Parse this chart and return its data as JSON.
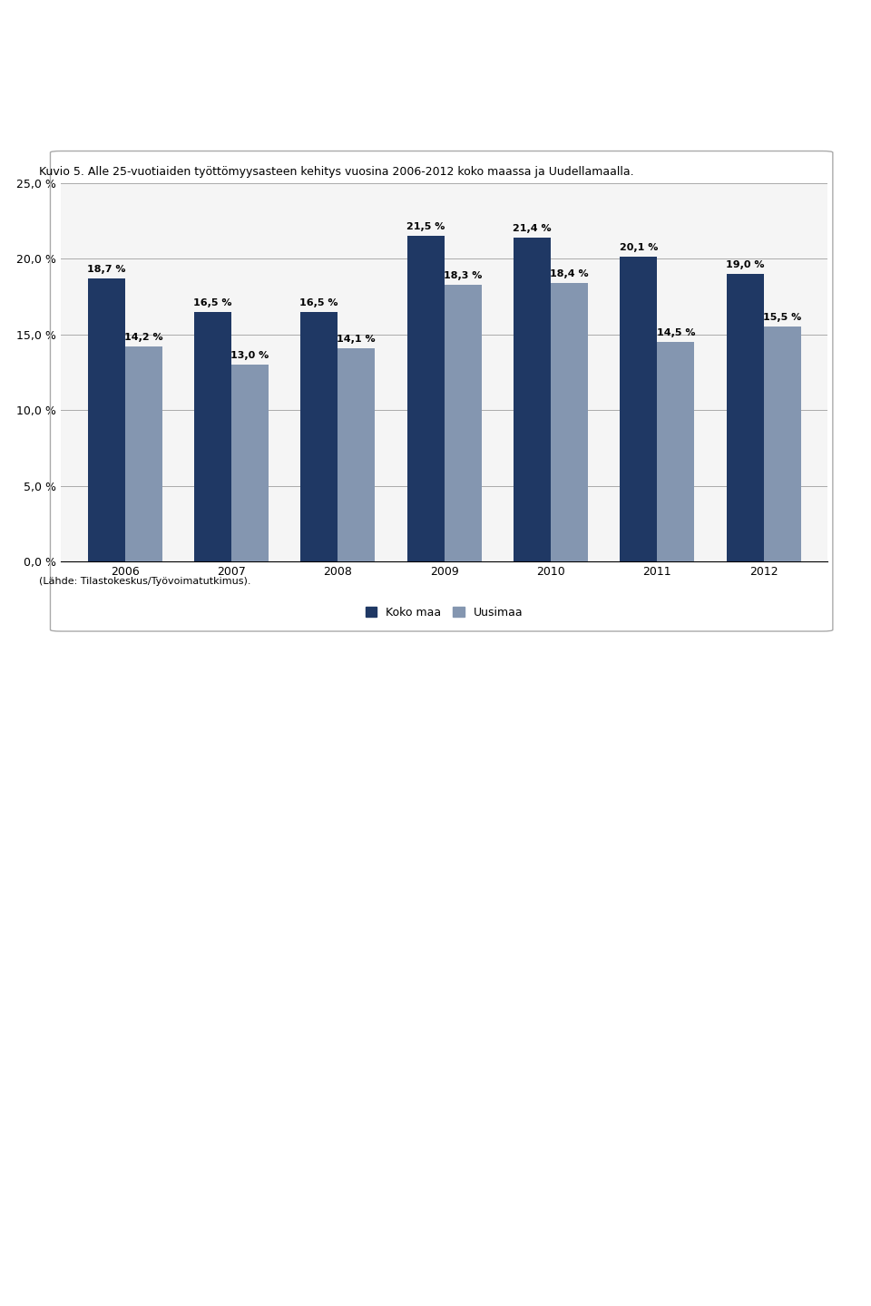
{
  "years": [
    "2006",
    "2007",
    "2008",
    "2009",
    "2010",
    "2011",
    "2012"
  ],
  "koko_maa": [
    18.7,
    16.5,
    16.5,
    21.5,
    21.4,
    20.1,
    19.0
  ],
  "uusimaa": [
    14.2,
    13.0,
    14.1,
    18.3,
    18.4,
    14.5,
    15.5
  ],
  "koko_maa_color": "#1F3864",
  "uusimaa_color": "#8496B0",
  "title": "Kuvio 5. Alle 25-vuotiaiden työttömyysasteen kehitys vuosina 2006-2012 koko maassa ja Uudellamaalla.",
  "legend_koko_maa": "Koko maa",
  "legend_uusimaa": "Uusimaa",
  "ylim": [
    0,
    25
  ],
  "yticks": [
    0,
    5.0,
    10.0,
    15.0,
    20.0,
    25.0
  ],
  "ytick_labels": [
    "0,0 %",
    "5,0 %",
    "10,0 %",
    "15,0 %",
    "20,0 %",
    "25,0 %"
  ],
  "source_text": "(Lähde: Tilastokeskus/Työvoimatutkimus).",
  "bar_width": 0.35
}
